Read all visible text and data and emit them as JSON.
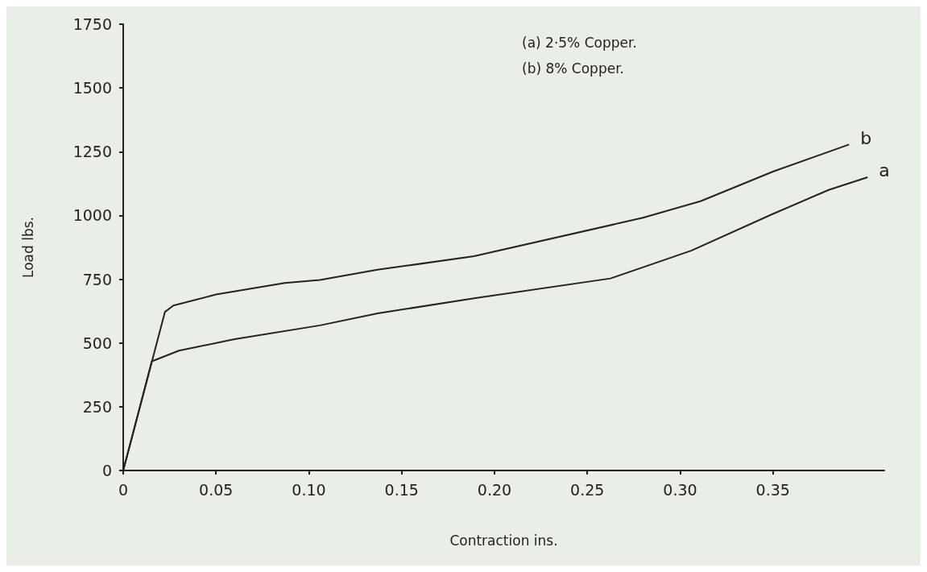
{
  "chart_data": {
    "type": "line",
    "xlabel": "Contraction ins.",
    "ylabel": "Load lbs.",
    "xlim": [
      0,
      0.41
    ],
    "ylim": [
      0,
      1750
    ],
    "xticks": [
      0,
      {
        "value": 0.05,
        "label": "0.05"
      },
      {
        "value": 0.1,
        "label": "0.10"
      },
      {
        "value": 0.15,
        "label": "0.15"
      },
      {
        "value": 0.2,
        "label": "0.20"
      },
      {
        "value": 0.25,
        "label": "0.25"
      },
      {
        "value": 0.3,
        "label": "0.30"
      },
      {
        "value": 0.35,
        "label": "0.35"
      }
    ],
    "yticks": [
      0,
      250,
      500,
      750,
      1000,
      1250,
      1500,
      1750
    ],
    "grid": false,
    "legend": false,
    "marker": "none",
    "line_style": "solid",
    "annotations": [
      "(a) 2·5% Copper.",
      "(b) 8% Copper."
    ],
    "series": [
      {
        "name": "a",
        "color": "#222222",
        "x": [
          0,
          0.0154,
          0.03,
          0.06,
          0.106,
          0.137,
          0.189,
          0.2625,
          0.306,
          0.35,
          0.38,
          0.401
        ],
        "values": [
          0,
          428,
          470,
          515,
          569,
          616,
          675,
          753,
          862,
          1006,
          1100,
          1150
        ]
      },
      {
        "name": "b",
        "color": "#222222",
        "x": [
          0,
          0.0225,
          0.027,
          0.05,
          0.087,
          0.106,
          0.137,
          0.189,
          0.28,
          0.311,
          0.35,
          0.391
        ],
        "values": [
          0,
          622,
          647,
          690,
          735,
          747,
          787,
          840,
          991,
          1056,
          1172,
          1278
        ]
      }
    ]
  }
}
